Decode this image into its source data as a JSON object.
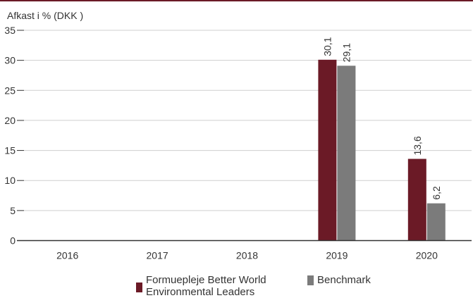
{
  "chart_data": {
    "type": "bar",
    "ylabel": "Afkast i % (DKK )",
    "categories": [
      "2016",
      "2017",
      "2018",
      "2019",
      "2020"
    ],
    "ylim": [
      0,
      35
    ],
    "yticks": [
      0,
      5,
      10,
      15,
      20,
      25,
      30,
      35
    ],
    "grid": true,
    "legend_position": "bottom",
    "series": [
      {
        "name": "Formuepleje Better World Environmental Leaders",
        "name_lines": [
          "Formuepleje Better World",
          "Environmental Leaders"
        ],
        "color": "#6b1a26",
        "values": [
          null,
          null,
          null,
          30.1,
          13.6
        ],
        "labels": [
          "",
          "",
          "",
          "30,1",
          "13,6"
        ]
      },
      {
        "name": "Benchmark",
        "color": "#7b7b7b",
        "values": [
          null,
          null,
          null,
          29.1,
          6.2
        ],
        "labels": [
          "",
          "",
          "",
          "29,1",
          "6,2"
        ]
      }
    ]
  },
  "colors": {
    "top_rule": "#6b1a26",
    "grid": "#cfcfcf",
    "axis": "#333333",
    "text": "#333333"
  }
}
